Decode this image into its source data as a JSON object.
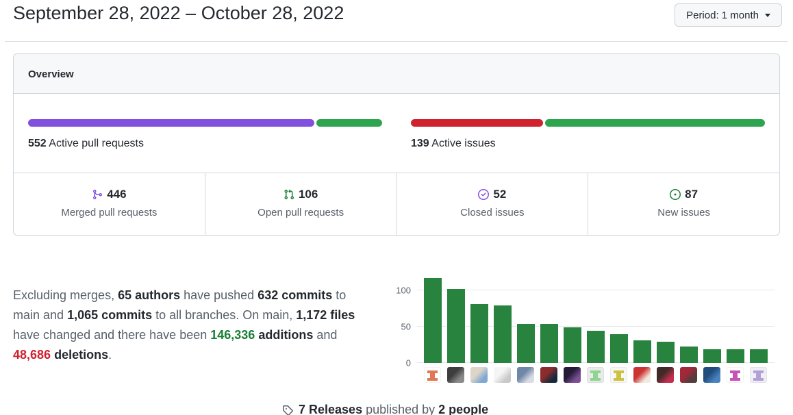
{
  "header": {
    "title": "September 28, 2022 – October 28, 2022",
    "period_label": "Period: 1 month"
  },
  "overview": {
    "heading": "Overview",
    "pull_requests": {
      "count": "552",
      "label": "Active pull requests",
      "merged": 446,
      "open": 106,
      "merged_color": "#8250df",
      "open_color": "#2da44e"
    },
    "issues": {
      "count": "139",
      "label": "Active issues",
      "closed": 52,
      "new": 87,
      "closed_color": "#cf222e",
      "new_color": "#2da44e"
    },
    "stats": [
      {
        "icon": "git-merge-icon",
        "value": "446",
        "label": "Merged pull requests",
        "icon_color": "#8250df"
      },
      {
        "icon": "git-pull-request-icon",
        "value": "106",
        "label": "Open pull requests",
        "icon_color": "#1a7f37"
      },
      {
        "icon": "issue-closed-icon",
        "value": "52",
        "label": "Closed issues",
        "icon_color": "#8250df"
      },
      {
        "icon": "issue-opened-icon",
        "value": "87",
        "label": "New issues",
        "icon_color": "#1a7f37"
      }
    ]
  },
  "summary": {
    "lines": [
      [
        {
          "text": "Excluding merges, ",
          "bold": false
        },
        {
          "text": "65 authors",
          "bold": true
        },
        {
          "text": " have pushed ",
          "bold": false
        },
        {
          "text": "632 commits",
          "bold": true
        },
        {
          "text": " to",
          "bold": false
        }
      ],
      [
        {
          "text": "main and ",
          "bold": false
        },
        {
          "text": "1,065 commits",
          "bold": true
        },
        {
          "text": " to all branches. On main, ",
          "bold": false
        },
        {
          "text": "1,172 files",
          "bold": true
        }
      ],
      [
        {
          "text": "have changed and there have been ",
          "bold": false
        },
        {
          "text": "146,336",
          "bold": true,
          "color": "#1a7f37"
        },
        {
          "text": " ",
          "bold": false
        },
        {
          "text": "additions",
          "bold": true
        },
        {
          "text": " and",
          "bold": false
        }
      ],
      [
        {
          "text": "48,686",
          "bold": true,
          "color": "#cf222e"
        },
        {
          "text": " ",
          "bold": false
        },
        {
          "text": "deletions",
          "bold": true
        },
        {
          "text": ".",
          "bold": false
        }
      ]
    ]
  },
  "chart_data": {
    "type": "bar",
    "values": [
      117,
      102,
      81,
      79,
      54,
      54,
      49,
      44,
      40,
      31,
      29,
      23,
      19,
      19,
      19
    ],
    "y_ticks": [
      0,
      50,
      100
    ],
    "ylim": [
      0,
      130
    ],
    "grid": true,
    "bar_color": "#27833d",
    "grid_color": "#e4e7ea",
    "avatars": [
      {
        "kind": "identicon",
        "bg": "#ffffff",
        "fg": "#e07856"
      },
      {
        "kind": "photo",
        "bg": "#8a8a8a",
        "fg": "#3d3d3d"
      },
      {
        "kind": "photo",
        "bg": "#7fa8d4",
        "fg": "#ddd6c8"
      },
      {
        "kind": "photo",
        "bg": "#c9c9c9",
        "fg": "#f5f5f5"
      },
      {
        "kind": "photo",
        "bg": "#d8dce4",
        "fg": "#6f87a8"
      },
      {
        "kind": "photo",
        "bg": "#16293c",
        "fg": "#8a2c2c"
      },
      {
        "kind": "photo",
        "bg": "#7a4f94",
        "fg": "#241b38"
      },
      {
        "kind": "identicon",
        "bg": "#eaeaea",
        "fg": "#8ed690"
      },
      {
        "kind": "identicon",
        "bg": "#f7f7f7",
        "fg": "#cdc23f"
      },
      {
        "kind": "photo",
        "bg": "#f2e9df",
        "fg": "#cc3333"
      },
      {
        "kind": "photo",
        "bg": "#c22e4d",
        "fg": "#402a28"
      },
      {
        "kind": "photo",
        "bg": "#523c3c",
        "fg": "#a02838"
      },
      {
        "kind": "photo",
        "bg": "#4a82c0",
        "fg": "#1f4e7e"
      },
      {
        "kind": "identicon",
        "bg": "#ffffff",
        "fg": "#c653b5"
      },
      {
        "kind": "identicon",
        "bg": "#efeff5",
        "fg": "#b49fd8"
      }
    ]
  },
  "releases_footer": {
    "segments": [
      {
        "text": "7 Releases",
        "bold": true
      },
      {
        "text": " published by ",
        "bold": false
      },
      {
        "text": "2 people",
        "bold": true
      }
    ]
  }
}
